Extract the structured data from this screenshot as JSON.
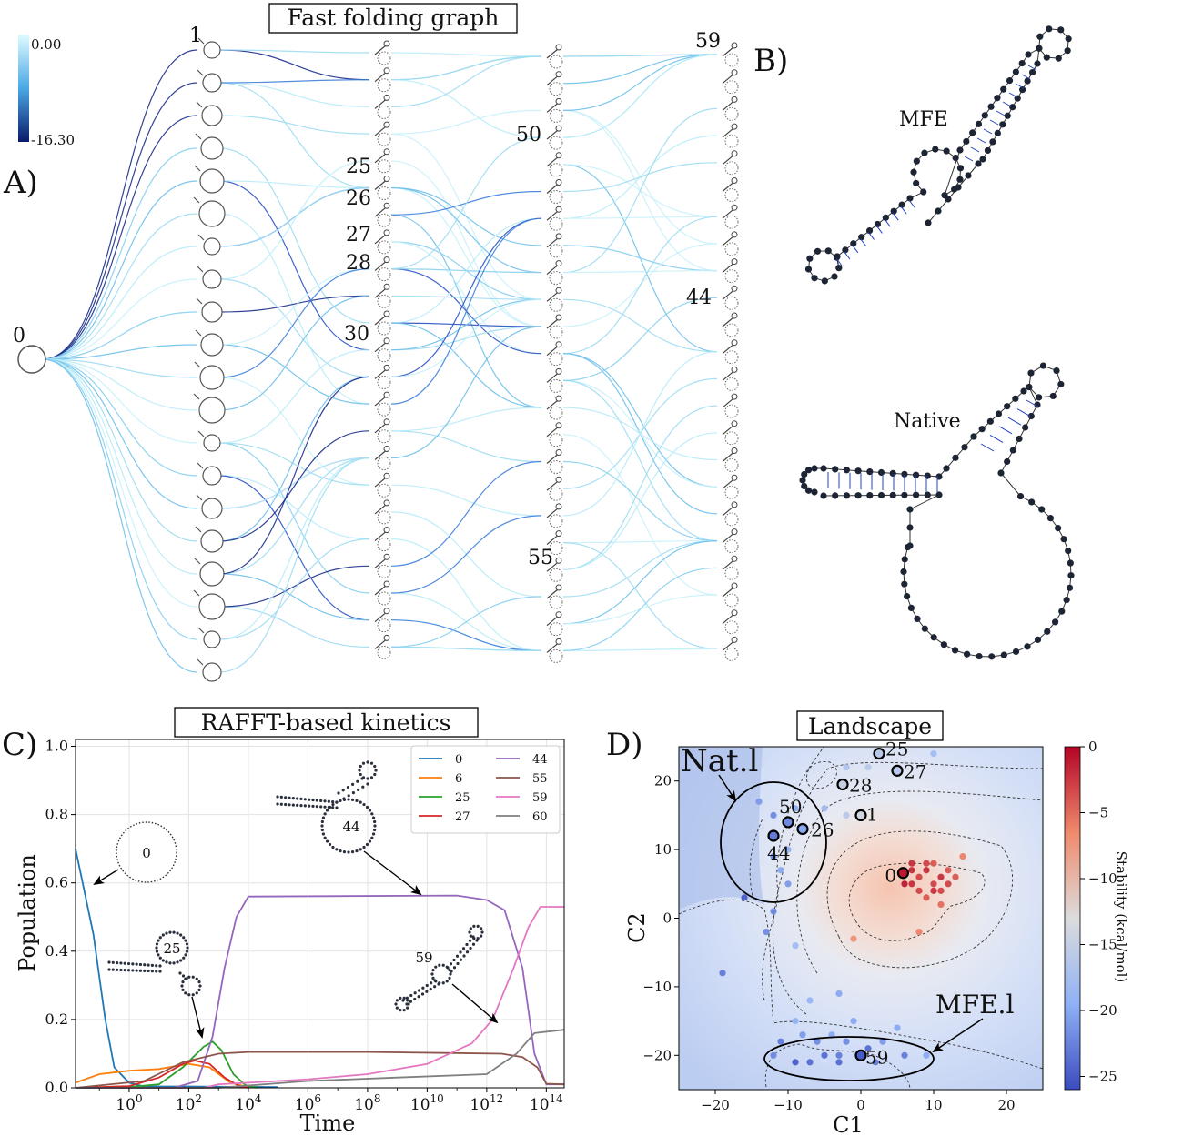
{
  "panels": {
    "a": "A)",
    "b": "B)",
    "c": "C)",
    "d": "D)"
  },
  "graph": {
    "title": "Fast folding graph",
    "colorbar_ticks": [
      "0.00",
      "-16.30"
    ],
    "node_labels": [
      "0",
      "1",
      "25",
      "26",
      "27",
      "28",
      "30",
      "50",
      "55",
      "59",
      "44"
    ]
  },
  "structures": {
    "mfe_label": "MFE",
    "native_label": "Native"
  },
  "kinetics": {
    "title": "RAFFT-based kinetics",
    "structure_labels": [
      "0",
      "25",
      "44",
      "59"
    ]
  },
  "landscape": {
    "title": "Landscape",
    "callouts": [
      "Nat.l",
      "MFE.l"
    ],
    "colorbar_label": "Stability (kcal/mol)",
    "colorbar_ticks": [
      "0",
      "−5",
      "−10",
      "−15",
      "−20",
      "−25"
    ]
  },
  "chart_data": [
    {
      "type": "line",
      "title": "RAFFT-based kinetics",
      "xlabel": "Time",
      "ylabel": "Population",
      "xscale": "log",
      "xlim_log10": [
        -1.8,
        14.6
      ],
      "ylim": [
        0,
        1.02
      ],
      "x_ticks": [
        "10^0",
        "10^2",
        "10^4",
        "10^6",
        "10^8",
        "10^10",
        "10^12",
        "10^14"
      ],
      "x_tick_exps": [
        0,
        2,
        4,
        6,
        8,
        10,
        12,
        14
      ],
      "y_ticks": [
        "0.0",
        "0.2",
        "0.4",
        "0.6",
        "0.8",
        "1.0"
      ],
      "y_tick_vals": [
        0,
        0.2,
        0.4,
        0.6,
        0.8,
        1.0
      ],
      "legend_position": "top-right",
      "series": [
        {
          "name": "0",
          "color": "#1f77b4",
          "points": [
            [
              -1.8,
              0.7
            ],
            [
              -1.2,
              0.45
            ],
            [
              -0.8,
              0.2
            ],
            [
              -0.5,
              0.06
            ],
            [
              0,
              0.015
            ],
            [
              0.5,
              0.004
            ],
            [
              2,
              0.004
            ],
            [
              5,
              0.002
            ]
          ]
        },
        {
          "name": "6",
          "color": "#ff7f0e",
          "points": [
            [
              -1.8,
              0.015
            ],
            [
              -1,
              0.04
            ],
            [
              0,
              0.05
            ],
            [
              1,
              0.055
            ],
            [
              2,
              0.07
            ],
            [
              2.7,
              0.06
            ],
            [
              3.4,
              0.015
            ],
            [
              4,
              0.002
            ]
          ]
        },
        {
          "name": "25",
          "color": "#2ca02c",
          "points": [
            [
              -1.8,
              0
            ],
            [
              0,
              0.002
            ],
            [
              1,
              0.01
            ],
            [
              1.8,
              0.06
            ],
            [
              2.5,
              0.12
            ],
            [
              2.8,
              0.135
            ],
            [
              3.1,
              0.11
            ],
            [
              3.5,
              0.04
            ],
            [
              3.9,
              0.008
            ],
            [
              4.3,
              0
            ]
          ]
        },
        {
          "name": "27",
          "color": "#d62728",
          "points": [
            [
              -1.8,
              0
            ],
            [
              0,
              0.005
            ],
            [
              1,
              0.03
            ],
            [
              1.8,
              0.07
            ],
            [
              2.2,
              0.08
            ],
            [
              2.7,
              0.07
            ],
            [
              3.2,
              0.03
            ],
            [
              3.7,
              0.005
            ],
            [
              4,
              0
            ]
          ]
        },
        {
          "name": "44",
          "color": "#9467bd",
          "points": [
            [
              -1.8,
              0
            ],
            [
              1.5,
              0
            ],
            [
              2.3,
              0.02
            ],
            [
              2.8,
              0.15
            ],
            [
              3.2,
              0.35
            ],
            [
              3.6,
              0.5
            ],
            [
              4,
              0.56
            ],
            [
              11,
              0.563
            ],
            [
              12,
              0.55
            ],
            [
              12.6,
              0.52
            ],
            [
              13.2,
              0.35
            ],
            [
              13.6,
              0.1
            ],
            [
              14,
              0.01
            ],
            [
              14.6,
              0.01
            ]
          ]
        },
        {
          "name": "55",
          "color": "#8c564b",
          "points": [
            [
              -1.8,
              0
            ],
            [
              0.5,
              0.02
            ],
            [
              1.8,
              0.075
            ],
            [
              3,
              0.1
            ],
            [
              4,
              0.105
            ],
            [
              8,
              0.105
            ],
            [
              12.5,
              0.1
            ],
            [
              13.2,
              0.09
            ],
            [
              13.7,
              0.06
            ],
            [
              14,
              0.012
            ],
            [
              14.6,
              0.01
            ]
          ]
        },
        {
          "name": "59",
          "color": "#e377c2",
          "points": [
            [
              -1.8,
              0
            ],
            [
              2.5,
              0
            ],
            [
              3,
              0.01
            ],
            [
              4,
              0.015
            ],
            [
              6,
              0.025
            ],
            [
              8,
              0.04
            ],
            [
              10,
              0.07
            ],
            [
              11.5,
              0.13
            ],
            [
              12.2,
              0.2
            ],
            [
              12.9,
              0.35
            ],
            [
              13.4,
              0.47
            ],
            [
              13.8,
              0.53
            ],
            [
              14.6,
              0.53
            ]
          ]
        },
        {
          "name": "60",
          "color": "#7f7f7f",
          "points": [
            [
              -1.8,
              0
            ],
            [
              3,
              0
            ],
            [
              6,
              0.02
            ],
            [
              9,
              0.03
            ],
            [
              12,
              0.04
            ],
            [
              13,
              0.1
            ],
            [
              13.6,
              0.16
            ],
            [
              14.6,
              0.17
            ]
          ]
        }
      ]
    },
    {
      "type": "scatter",
      "title": "Landscape",
      "xlabel": "C1",
      "ylabel": "C2",
      "xlim": [
        -25,
        25
      ],
      "ylim": [
        -25,
        25
      ],
      "x_ticks": [
        "−20",
        "−10",
        "0",
        "10",
        "20"
      ],
      "x_tick_vals": [
        -20,
        -10,
        0,
        10,
        20
      ],
      "y_ticks": [
        "−20",
        "−10",
        "0",
        "10",
        "20"
      ],
      "y_tick_vals": [
        -20,
        -10,
        0,
        10,
        20
      ],
      "colorbar": {
        "label": "Stability (kcal/mol)",
        "range": [
          -26,
          0
        ]
      },
      "labeled_points": [
        {
          "label": "0",
          "x": 5.8,
          "y": 6.6,
          "stability": -1
        },
        {
          "label": "1",
          "x": 0,
          "y": 15,
          "stability": -14
        },
        {
          "label": "25",
          "x": 2.5,
          "y": 24,
          "stability": -16
        },
        {
          "label": "27",
          "x": 5,
          "y": 21.5,
          "stability": -16
        },
        {
          "label": "28",
          "x": -2.5,
          "y": 19.5,
          "stability": -15
        },
        {
          "label": "50",
          "x": -10,
          "y": 14,
          "stability": -22
        },
        {
          "label": "26",
          "x": -8,
          "y": 13,
          "stability": -20
        },
        {
          "label": "44",
          "x": -12,
          "y": 12,
          "stability": -23
        },
        {
          "label": "59",
          "x": 0,
          "y": -20,
          "stability": -25
        }
      ],
      "points": [
        {
          "x": 7,
          "y": 5,
          "s": -2
        },
        {
          "x": 8,
          "y": 6,
          "s": -3
        },
        {
          "x": 9,
          "y": 7,
          "s": -2
        },
        {
          "x": 10,
          "y": 5,
          "s": -3
        },
        {
          "x": 11,
          "y": 6,
          "s": -2
        },
        {
          "x": 12,
          "y": 7,
          "s": -4
        },
        {
          "x": 8,
          "y": 4,
          "s": -3
        },
        {
          "x": 9,
          "y": 3,
          "s": -4
        },
        {
          "x": 10,
          "y": 4,
          "s": -2
        },
        {
          "x": 11,
          "y": 4,
          "s": -3
        },
        {
          "x": 7,
          "y": 7,
          "s": -2
        },
        {
          "x": 6,
          "y": 5,
          "s": -1
        },
        {
          "x": 12,
          "y": 5,
          "s": -3
        },
        {
          "x": 13,
          "y": 6,
          "s": -4
        },
        {
          "x": 14,
          "y": 9,
          "s": -6
        },
        {
          "x": 11,
          "y": 2,
          "s": -5
        },
        {
          "x": 7,
          "y": 8,
          "s": -2
        },
        {
          "x": 9,
          "y": 8,
          "s": -3
        },
        {
          "x": 10,
          "y": 8,
          "s": -4
        },
        {
          "x": -1,
          "y": -3,
          "s": -7
        },
        {
          "x": 8,
          "y": -2,
          "s": -6
        },
        {
          "x": -2,
          "y": 22,
          "s": -17
        },
        {
          "x": 1,
          "y": 22,
          "s": -16
        },
        {
          "x": 10,
          "y": 24,
          "s": -18
        },
        {
          "x": -5,
          "y": 16,
          "s": -18
        },
        {
          "x": -2,
          "y": 15,
          "s": -16
        },
        {
          "x": -14,
          "y": 17,
          "s": -21
        },
        {
          "x": -12,
          "y": 15,
          "s": -22
        },
        {
          "x": -9,
          "y": 16,
          "s": -20
        },
        {
          "x": -10,
          "y": 10,
          "s": -19
        },
        {
          "x": -12,
          "y": 9,
          "s": -22
        },
        {
          "x": -11,
          "y": 7,
          "s": -20
        },
        {
          "x": -12,
          "y": 1,
          "s": -22
        },
        {
          "x": -10,
          "y": 5,
          "s": -21
        },
        {
          "x": -19,
          "y": -8,
          "s": -23
        },
        {
          "x": -13,
          "y": -2,
          "s": -22
        },
        {
          "x": -9,
          "y": -4,
          "s": -18
        },
        {
          "x": -3,
          "y": -11,
          "s": -20
        },
        {
          "x": -16,
          "y": 3,
          "s": -25
        },
        {
          "x": -9,
          "y": -15,
          "s": -19
        },
        {
          "x": -11,
          "y": -18,
          "s": -23
        },
        {
          "x": -8,
          "y": -17,
          "s": -21
        },
        {
          "x": -6,
          "y": -18,
          "s": -22
        },
        {
          "x": -5,
          "y": -20,
          "s": -24
        },
        {
          "x": -4,
          "y": -17,
          "s": -20
        },
        {
          "x": -3,
          "y": -20,
          "s": -23
        },
        {
          "x": -2,
          "y": -18,
          "s": -22
        },
        {
          "x": 1,
          "y": -19,
          "s": -24
        },
        {
          "x": 2,
          "y": -21,
          "s": -23
        },
        {
          "x": 3,
          "y": -18,
          "s": -21
        },
        {
          "x": 5,
          "y": -16,
          "s": -20
        },
        {
          "x": 6,
          "y": -20,
          "s": -23
        },
        {
          "x": -1,
          "y": -15,
          "s": -20
        },
        {
          "x": -7,
          "y": -21,
          "s": -24
        },
        {
          "x": -9,
          "y": -21,
          "s": -25
        },
        {
          "x": -12,
          "y": -20,
          "s": -22
        },
        {
          "x": -7,
          "y": -12,
          "s": -19
        },
        {
          "x": 9,
          "y": -20,
          "s": -20
        },
        {
          "x": -3,
          "y": -21,
          "s": -24
        }
      ]
    }
  ]
}
